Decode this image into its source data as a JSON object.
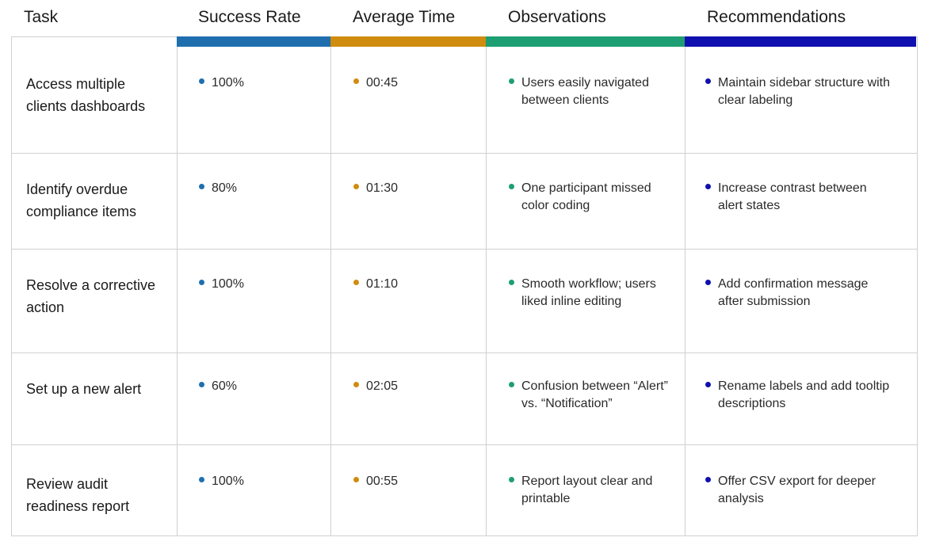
{
  "columns": {
    "task": "Task",
    "success": "Success Rate",
    "time": "Average Time",
    "observations": "Observations",
    "recommendations": "Recommendations"
  },
  "colors": {
    "success": "#1f6fae",
    "time": "#d08c0e",
    "observations": "#1e9e73",
    "recommendations": "#1010b0"
  },
  "rows": [
    {
      "task": "Access multiple clients dashboards",
      "success": "100%",
      "time": "00:45",
      "observation": "Users easily navigated between clients",
      "recommendation": "Maintain sidebar structure with clear labeling"
    },
    {
      "task": "Identify overdue compliance items",
      "success": "80%",
      "time": "01:30",
      "observation": "One participant missed color coding",
      "recommendation": "Increase contrast between alert states"
    },
    {
      "task": "Resolve a corrective action",
      "success": "100%",
      "time": "01:10",
      "observation": "Smooth workflow; users liked inline editing",
      "recommendation": "Add confirmation message after submission"
    },
    {
      "task": "Set up a new alert",
      "success": "60%",
      "time": "02:05",
      "observation": "Confusion between “Alert” vs. “Notification”",
      "recommendation": "Rename labels and add tooltip descriptions"
    },
    {
      "task": "Review audit readiness report",
      "success": "100%",
      "time": "00:55",
      "observation": "Report layout clear and printable",
      "recommendation": "Offer CSV export for deeper analysis"
    }
  ]
}
